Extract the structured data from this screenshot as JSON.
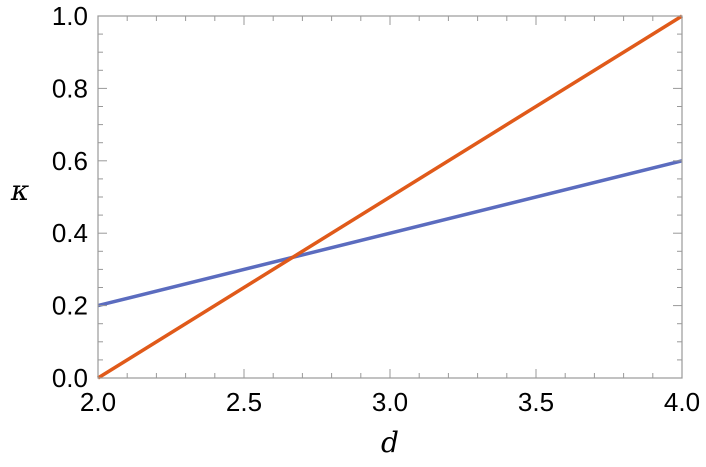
{
  "chart_data": {
    "type": "line",
    "xlabel": "d",
    "ylabel": "κ",
    "xlim": [
      2.0,
      4.0
    ],
    "ylim": [
      0.0,
      1.0
    ],
    "x_ticks": [
      "2.0",
      "2.5",
      "3.0",
      "3.5",
      "4.0"
    ],
    "y_ticks": [
      "0.0",
      "0.2",
      "0.4",
      "0.6",
      "0.8",
      "1.0"
    ],
    "grid": false,
    "series": [
      {
        "x": [
          2.0,
          4.0
        ],
        "y": [
          0.2,
          0.6
        ],
        "color": "#5b6cbf"
      },
      {
        "x": [
          2.0,
          4.0
        ],
        "y": [
          0.0,
          1.0
        ],
        "color": "#e05a1a"
      }
    ]
  }
}
